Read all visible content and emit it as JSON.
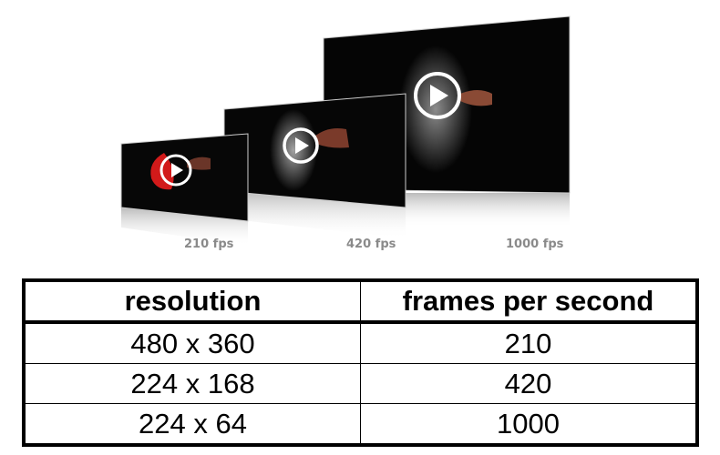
{
  "figure": {
    "panels": [
      {
        "label": "210 fps",
        "accent": "#d21a1a"
      },
      {
        "label": "420 fps",
        "accent": "#ffffff"
      },
      {
        "label": "1000 fps",
        "accent": "#ffffff"
      }
    ],
    "icon": "play-icon"
  },
  "table": {
    "headers": [
      "resolution",
      "frames per second"
    ],
    "rows": [
      [
        "480 x 360",
        "210"
      ],
      [
        "224 x 168",
        "420"
      ],
      [
        "224 x 64",
        "1000"
      ]
    ]
  }
}
